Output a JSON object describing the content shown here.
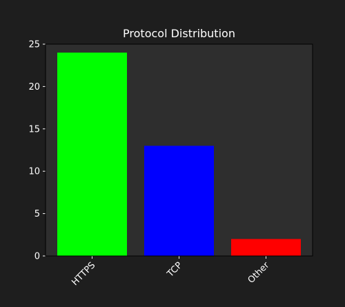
{
  "chart_data": {
    "type": "bar",
    "title": "Protocol Distribution",
    "categories": [
      "HTTPS",
      "TCP",
      "Other"
    ],
    "values": [
      24,
      13,
      2
    ],
    "colors": [
      "#00ff00",
      "#0000ff",
      "#ff0000"
    ],
    "xlabel": "",
    "ylabel": "",
    "ylim": [
      0,
      25
    ],
    "yticks": [
      0,
      5,
      10,
      15,
      20,
      25
    ],
    "xtick_rotation": 45,
    "grid": false
  },
  "theme": {
    "figure_bg": "#1e1e1e",
    "axes_bg": "#2e2e2e",
    "text": "#ffffff",
    "spine": "#000000"
  }
}
